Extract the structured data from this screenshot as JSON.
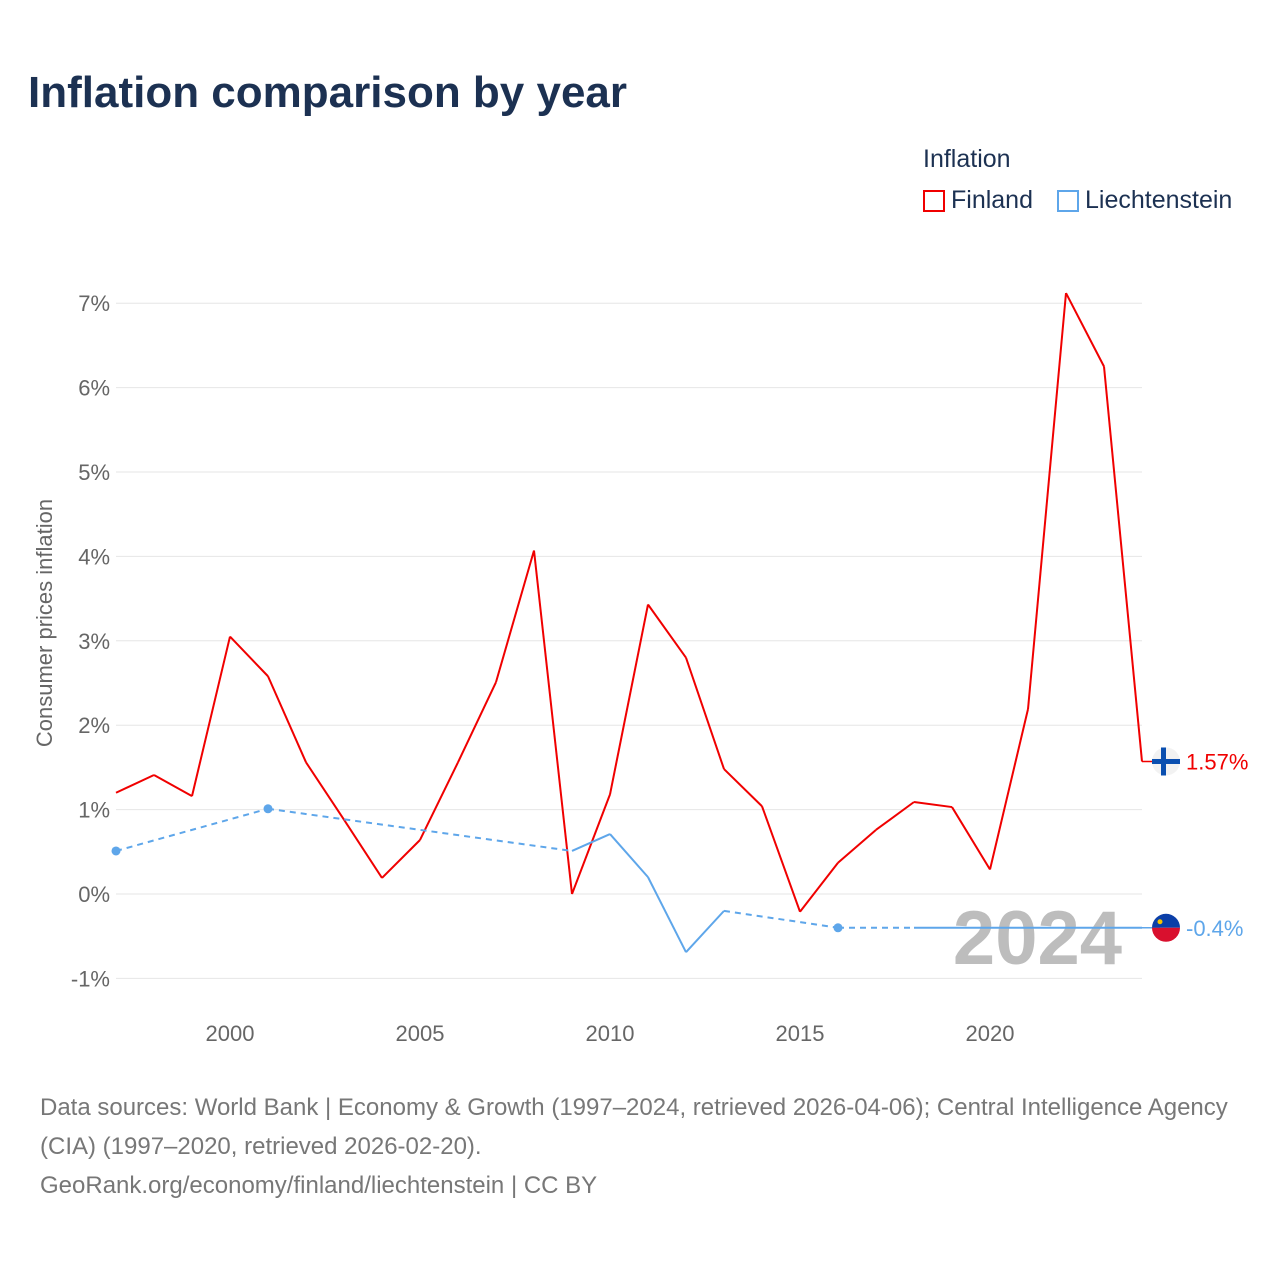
{
  "title": "Inflation comparison by year",
  "legend_title": "Inflation",
  "footer": {
    "line1": "Data sources: World Bank | Economy & Growth (1997–2024, retrieved 2026-04-06); Central Intelligence Agency (CIA) (1997–2020, retrieved 2026-02-20).",
    "line2": "GeoRank.org/economy/finland/liechtenstein | CC BY"
  },
  "chart_data": {
    "type": "line",
    "title": "Inflation comparison by year",
    "xlabel": "",
    "ylabel": "Consumer prices inflation",
    "xlim": [
      1997,
      2024
    ],
    "ylim": [
      -1.35,
      7.35
    ],
    "yticks": [
      -1,
      0,
      1,
      2,
      3,
      4,
      5,
      6,
      7
    ],
    "ytick_labels": [
      "-1%",
      "0%",
      "1%",
      "2%",
      "3%",
      "4%",
      "5%",
      "6%",
      "7%"
    ],
    "xticks": [
      2000,
      2005,
      2010,
      2015,
      2020
    ],
    "xtick_labels": [
      "2000",
      "2005",
      "2010",
      "2015",
      "2020"
    ],
    "grid": true,
    "legend": "top-right",
    "watermark_year": "2024",
    "series": [
      {
        "name": "Finland",
        "color": "#f00000",
        "end_label": "1.57%",
        "flag": "finland-flag",
        "x": [
          1997,
          1998,
          1999,
          2000,
          2001,
          2002,
          2003,
          2004,
          2005,
          2006,
          2007,
          2008,
          2009,
          2010,
          2011,
          2012,
          2013,
          2014,
          2015,
          2016,
          2017,
          2018,
          2019,
          2020,
          2021,
          2022,
          2023,
          2024
        ],
        "y": [
          1.2,
          1.41,
          1.16,
          3.05,
          2.58,
          1.56,
          0.88,
          0.19,
          0.64,
          1.56,
          2.51,
          4.07,
          0.0,
          1.18,
          3.43,
          2.8,
          1.48,
          1.04,
          -0.21,
          0.37,
          0.76,
          1.09,
          1.03,
          0.29,
          2.19,
          7.12,
          6.25,
          1.57
        ]
      },
      {
        "name": "Liechtenstein",
        "color": "#5ea6ea",
        "end_label": "-0.4%",
        "flag": "liechtenstein-flag",
        "x": [
          1997,
          2001,
          2009,
          2010,
          2011,
          2012,
          2013,
          2016,
          2018,
          2019,
          2020,
          2021,
          2022,
          2023,
          2024
        ],
        "y": [
          0.51,
          1.01,
          0.51,
          0.71,
          0.2,
          -0.69,
          -0.2,
          -0.4,
          -0.4,
          -0.4,
          -0.4,
          -0.4,
          -0.4,
          -0.4,
          -0.4
        ]
      }
    ]
  }
}
